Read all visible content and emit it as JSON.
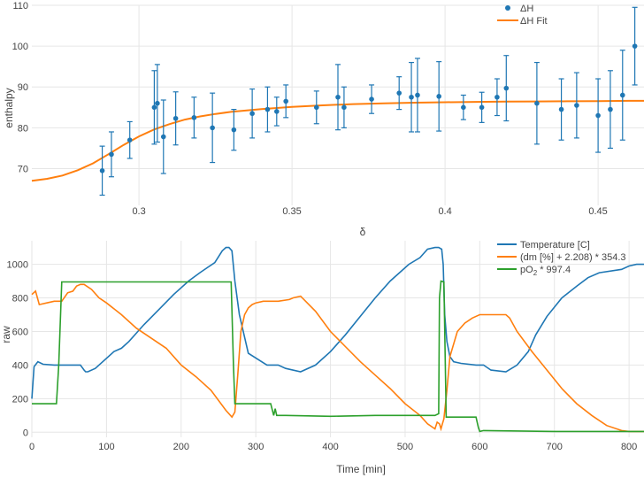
{
  "chart_data": [
    {
      "type": "scatter",
      "title": "",
      "xlabel": "δ",
      "ylabel": "enthalpy",
      "xlim": [
        0.265,
        0.465
      ],
      "ylim": [
        61,
        110
      ],
      "x_ticks": [
        0.3,
        0.35,
        0.4,
        0.45
      ],
      "x_tick_labels": [
        "0.3",
        "0.35",
        "0.4",
        "0.45"
      ],
      "y_ticks": [
        70,
        80,
        90,
        100,
        110
      ],
      "y_tick_labels": [
        "70",
        "80",
        "90",
        "100",
        "110"
      ],
      "grid": true,
      "legend_position": "top-right",
      "colors": {
        "points": "#1f77b4",
        "fit": "#ff7f0e",
        "grid": "#e6e6e6"
      },
      "series": [
        {
          "name": "ΔH",
          "kind": "markers_with_error_bars",
          "points": [
            {
              "x": 0.288,
              "y": 69.5,
              "err": 6
            },
            {
              "x": 0.291,
              "y": 73.5,
              "err": 5.5
            },
            {
              "x": 0.297,
              "y": 77,
              "err": 4.5
            },
            {
              "x": 0.305,
              "y": 85,
              "err": 9
            },
            {
              "x": 0.306,
              "y": 86,
              "err": 9.5
            },
            {
              "x": 0.308,
              "y": 77.8,
              "err": 9
            },
            {
              "x": 0.312,
              "y": 82.3,
              "err": 6.5
            },
            {
              "x": 0.318,
              "y": 82.5,
              "err": 5
            },
            {
              "x": 0.324,
              "y": 80,
              "err": 8.5
            },
            {
              "x": 0.331,
              "y": 79.5,
              "err": 5
            },
            {
              "x": 0.337,
              "y": 83.5,
              "err": 6
            },
            {
              "x": 0.342,
              "y": 84.5,
              "err": 5.5
            },
            {
              "x": 0.345,
              "y": 84,
              "err": 3.5
            },
            {
              "x": 0.348,
              "y": 86.5,
              "err": 4
            },
            {
              "x": 0.358,
              "y": 85,
              "err": 4
            },
            {
              "x": 0.365,
              "y": 87.5,
              "err": 8
            },
            {
              "x": 0.367,
              "y": 85,
              "err": 5
            },
            {
              "x": 0.376,
              "y": 87,
              "err": 3.5
            },
            {
              "x": 0.385,
              "y": 88.5,
              "err": 4
            },
            {
              "x": 0.389,
              "y": 87.5,
              "err": 8.5
            },
            {
              "x": 0.391,
              "y": 88,
              "err": 9
            },
            {
              "x": 0.398,
              "y": 87.7,
              "err": 8.5
            },
            {
              "x": 0.406,
              "y": 85,
              "err": 3
            },
            {
              "x": 0.412,
              "y": 85,
              "err": 3.7
            },
            {
              "x": 0.417,
              "y": 87.5,
              "err": 4.5
            },
            {
              "x": 0.42,
              "y": 89.7,
              "err": 8
            },
            {
              "x": 0.43,
              "y": 86,
              "err": 10
            },
            {
              "x": 0.438,
              "y": 84.5,
              "err": 7.5
            },
            {
              "x": 0.443,
              "y": 85.5,
              "err": 8
            },
            {
              "x": 0.45,
              "y": 83,
              "err": 9
            },
            {
              "x": 0.454,
              "y": 84.5,
              "err": 9.5
            },
            {
              "x": 0.458,
              "y": 88,
              "err": 11
            },
            {
              "x": 0.462,
              "y": 100,
              "err": 9.5
            }
          ]
        },
        {
          "name": "ΔH Fit",
          "kind": "line",
          "x": [
            0.265,
            0.27,
            0.275,
            0.28,
            0.285,
            0.29,
            0.295,
            0.3,
            0.305,
            0.31,
            0.315,
            0.32,
            0.325,
            0.33,
            0.34,
            0.35,
            0.36,
            0.37,
            0.38,
            0.39,
            0.4,
            0.41,
            0.42,
            0.43,
            0.44,
            0.45,
            0.46,
            0.465
          ],
          "y": [
            67.0,
            67.5,
            68.3,
            69.6,
            71.3,
            73.5,
            75.8,
            77.9,
            79.6,
            80.9,
            82.0,
            82.8,
            83.4,
            83.9,
            84.6,
            85.1,
            85.5,
            85.8,
            86.0,
            86.15,
            86.25,
            86.35,
            86.4,
            86.45,
            86.5,
            86.55,
            86.6,
            86.6
          ]
        }
      ]
    },
    {
      "type": "line",
      "title": "",
      "xlabel": "Time [min]",
      "ylabel": "raw",
      "xlim": [
        0,
        820
      ],
      "ylim": [
        -30,
        1140
      ],
      "x_ticks": [
        0,
        100,
        200,
        300,
        400,
        500,
        600,
        700,
        800
      ],
      "x_tick_labels": [
        "0",
        "100",
        "200",
        "300",
        "400",
        "500",
        "600",
        "700",
        "800"
      ],
      "y_ticks": [
        0,
        200,
        400,
        600,
        800,
        1000
      ],
      "y_tick_labels": [
        "0",
        "200",
        "400",
        "600",
        "800",
        "1000"
      ],
      "grid": true,
      "legend_position": "top-right",
      "colors": {
        "temperature": "#1f77b4",
        "dm": "#ff7f0e",
        "po2": "#2ca02c",
        "grid": "#e6e6e6"
      },
      "series": [
        {
          "name": "Temperature [C]",
          "x": [
            0,
            3,
            8,
            15,
            30,
            65,
            70,
            72,
            75,
            85,
            110,
            120,
            130,
            150,
            170,
            190,
            210,
            225,
            235,
            245,
            255,
            260,
            264,
            268,
            272,
            278,
            290,
            315,
            330,
            340,
            360,
            380,
            400,
            420,
            440,
            460,
            480,
            505,
            520,
            530,
            540,
            545,
            549,
            551,
            553,
            556,
            560,
            565,
            575,
            595,
            600,
            605,
            615,
            635,
            650,
            665,
            675,
            690,
            710,
            730,
            745,
            760,
            790,
            800,
            810,
            820
          ],
          "y": [
            200,
            390,
            420,
            405,
            400,
            400,
            370,
            360,
            360,
            380,
            480,
            500,
            540,
            640,
            730,
            820,
            900,
            950,
            980,
            1010,
            1080,
            1100,
            1100,
            1080,
            900,
            700,
            470,
            400,
            400,
            380,
            360,
            400,
            480,
            580,
            690,
            800,
            900,
            1000,
            1040,
            1090,
            1100,
            1100,
            1090,
            1000,
            700,
            540,
            450,
            420,
            410,
            400,
            400,
            400,
            370,
            360,
            400,
            480,
            580,
            690,
            800,
            870,
            920,
            950,
            970,
            990,
            1000,
            1000
          ]
        },
        {
          "name": "(dm [%] + 2.208) * 354.3",
          "x": [
            0,
            5,
            10,
            20,
            30,
            40,
            48,
            55,
            60,
            65,
            70,
            80,
            90,
            100,
            120,
            140,
            160,
            180,
            200,
            220,
            240,
            260,
            268,
            272,
            276,
            280,
            285,
            290,
            295,
            300,
            310,
            330,
            345,
            350,
            360,
            380,
            400,
            420,
            440,
            460,
            480,
            500,
            520,
            530,
            540,
            543,
            546,
            548,
            550,
            552,
            556,
            560,
            570,
            580,
            590,
            600,
            620,
            635,
            640,
            650,
            670,
            690,
            710,
            730,
            750,
            770,
            790,
            800,
            810,
            820
          ],
          "y": [
            820,
            840,
            760,
            770,
            780,
            780,
            830,
            840,
            870,
            880,
            880,
            850,
            800,
            770,
            700,
            620,
            560,
            500,
            400,
            330,
            250,
            130,
            90,
            120,
            350,
            600,
            700,
            740,
            760,
            770,
            780,
            780,
            790,
            800,
            810,
            720,
            600,
            510,
            420,
            340,
            260,
            170,
            100,
            50,
            20,
            60,
            50,
            20,
            50,
            80,
            250,
            450,
            600,
            650,
            680,
            700,
            700,
            700,
            680,
            600,
            480,
            370,
            260,
            170,
            100,
            40,
            10,
            5,
            5,
            5
          ]
        },
        {
          "name": "pO₂ * 997.4",
          "x": [
            0,
            10,
            20,
            33,
            36,
            40,
            100,
            200,
            267,
            270,
            272,
            275,
            300,
            320,
            324,
            326,
            328,
            330,
            340,
            400,
            460,
            500,
            540,
            545,
            546,
            548,
            552,
            555,
            580,
            595,
            598,
            600,
            605,
            700,
            820
          ],
          "y": [
            170,
            170,
            170,
            170,
            400,
            895,
            895,
            895,
            895,
            400,
            170,
            170,
            170,
            170,
            100,
            140,
            100,
            100,
            100,
            95,
            100,
            100,
            100,
            110,
            800,
            900,
            895,
            90,
            90,
            90,
            30,
            5,
            10,
            5,
            5
          ]
        }
      ]
    }
  ],
  "legend": {
    "top": [
      "ΔH",
      "ΔH Fit"
    ],
    "bottom_temperature": "Temperature [C]",
    "bottom_dm": "(dm [%] + 2.208) * 354.3",
    "bottom_po2_prefix": "pO",
    "bottom_po2_sub": "2",
    "bottom_po2_suffix": " * 997.4"
  }
}
